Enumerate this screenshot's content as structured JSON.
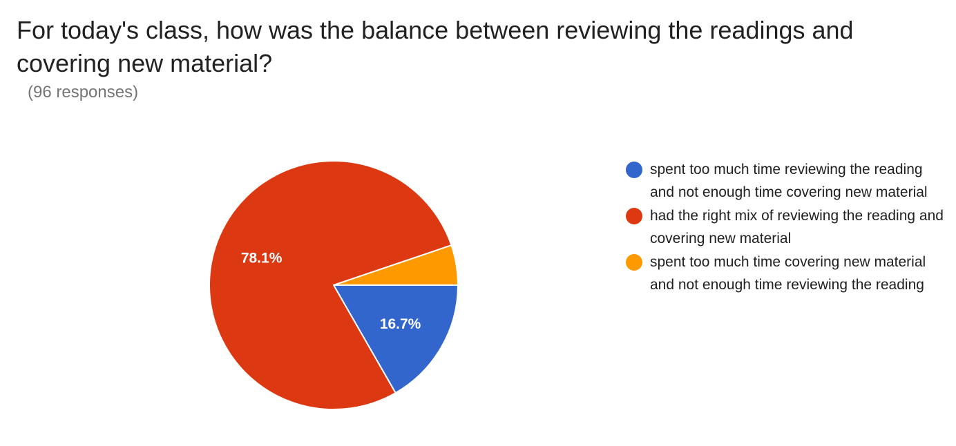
{
  "header": {
    "title": "For today's class, how was the balance between reviewing the readings and covering new material?",
    "responses": "(96 responses)"
  },
  "chart_data": {
    "type": "pie",
    "title": "For today's class, how was the balance between reviewing the readings and covering new material?",
    "legend_placement": "right",
    "slices": [
      {
        "label": "spent too much time reviewing the reading and not enough time covering new material",
        "value": 16.7,
        "display": "16.7%",
        "color": "#3366cc"
      },
      {
        "label": "had the right mix of reviewing the reading and covering new material",
        "value": 78.1,
        "display": "78.1%",
        "color": "#dc3912"
      },
      {
        "label": "spent too much time covering new material and not enough time reviewing the reading",
        "value": 5.2,
        "display": "",
        "color": "#ff9900"
      }
    ]
  }
}
